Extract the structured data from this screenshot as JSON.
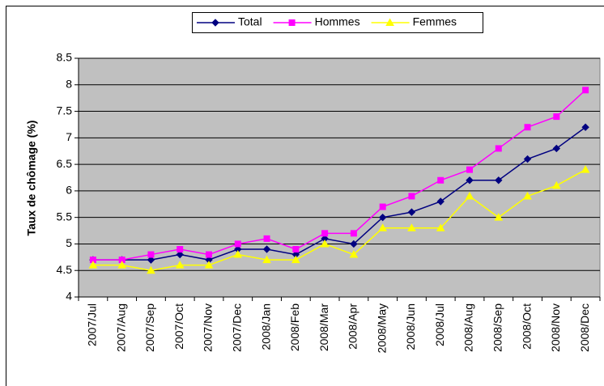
{
  "chart_data": {
    "type": "line",
    "y_label": "Taux de chômage (%)",
    "categories": [
      "2007/Jul",
      "2007/Aug",
      "2007/Sep",
      "2007/Oct",
      "2007/Nov",
      "2007/Dec",
      "2008/Jan",
      "2008/Feb",
      "2008/Mar",
      "2008/Apr",
      "2008/May",
      "2008/Jun",
      "2008/Jul",
      "2008/Aug",
      "2008/Sep",
      "2008/Oct",
      "2008/Nov",
      "2008/Dec"
    ],
    "series": [
      {
        "name": "Total",
        "color": "#000080",
        "marker": "diamond",
        "values": [
          4.7,
          4.7,
          4.7,
          4.8,
          4.7,
          4.9,
          4.9,
          4.8,
          5.1,
          5.0,
          5.5,
          5.6,
          5.8,
          6.2,
          6.2,
          6.6,
          6.8,
          7.2
        ]
      },
      {
        "name": "Hommes",
        "color": "#ff00ff",
        "marker": "square",
        "values": [
          4.7,
          4.7,
          4.8,
          4.9,
          4.8,
          5.0,
          5.1,
          4.9,
          5.2,
          5.2,
          5.7,
          5.9,
          6.2,
          6.4,
          6.8,
          7.2,
          7.4,
          7.9
        ]
      },
      {
        "name": "Femmes",
        "color": "#ffff00",
        "marker": "triangle",
        "values": [
          4.6,
          4.6,
          4.5,
          4.6,
          4.6,
          4.8,
          4.7,
          4.7,
          5.0,
          4.8,
          5.3,
          5.3,
          5.3,
          5.9,
          5.5,
          5.9,
          6.1,
          6.4
        ]
      }
    ],
    "ylim": [
      4,
      8.5
    ],
    "yticks": [
      4,
      4.5,
      5,
      5.5,
      6,
      6.5,
      7,
      7.5,
      8,
      8.5
    ],
    "grid": true,
    "legend": "top",
    "plot_background": "#c0c0c0"
  }
}
